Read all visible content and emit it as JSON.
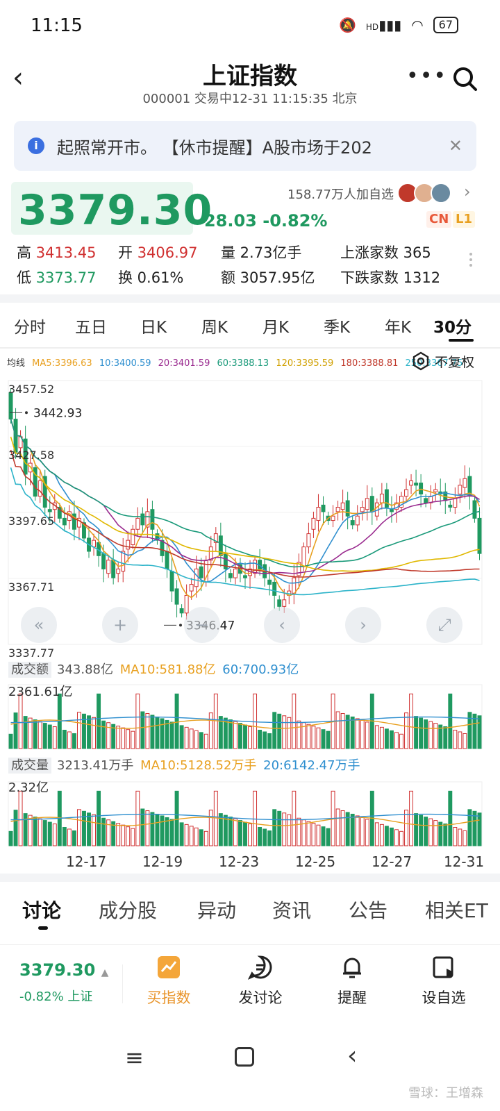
{
  "status": {
    "time": "11:15",
    "net": "HD",
    "battery": "67"
  },
  "header": {
    "title": "上证指数",
    "subtitle": "000001 交易中12-31 11:15:35 北京"
  },
  "notice": {
    "text": "起照常开市。 【休市提醒】A股市场于202"
  },
  "quote": {
    "price": "3379.30",
    "change": "-28.03 -0.82%",
    "followers": "158.77万人加自选",
    "badge_cn": "CN",
    "badge_l1": "L1"
  },
  "stats": {
    "high_label": "高",
    "high": "3413.45",
    "open_label": "开",
    "open": "3406.97",
    "volume": "量 2.73亿手",
    "advancers": "上涨家数 365",
    "low_label": "低",
    "low": "3373.77",
    "turnover": "换 0.61%",
    "amount": "额 3057.95亿",
    "decliners": "下跌家数 1312"
  },
  "period_tabs": [
    "分时",
    "五日",
    "日K",
    "周K",
    "月K",
    "季K",
    "年K",
    "30分"
  ],
  "active_period": "30分",
  "ma_legend": {
    "label": "均线",
    "items": [
      {
        "text": "MA5:3396.63",
        "color": "#e8a020"
      },
      {
        "text": "10:3400.59",
        "color": "#2f8fcf"
      },
      {
        "text": "20:3401.59",
        "color": "#9a2b8f"
      },
      {
        "text": "60:3388.13",
        "color": "#1a9a7a"
      },
      {
        "text": "120:3395.59",
        "color": "#e0b800"
      },
      {
        "text": "180:3388.81",
        "color": "#c0392b"
      },
      {
        "text": "250:3367.75",
        "color": "#2bb3c9"
      }
    ],
    "fq_label": "不复权"
  },
  "chart_data": {
    "type": "candlestick",
    "y_ticks": [
      "3457.52",
      "3427.58",
      "3397.65",
      "3367.71",
      "3337.77"
    ],
    "ylim": [
      3337.77,
      3457.52
    ],
    "max_marker": "3442.93",
    "min_marker": "3346.47",
    "x_ticks": [
      "12-17",
      "12-19",
      "12-23",
      "12-25",
      "12-27",
      "12-31"
    ],
    "ma_colors": {
      "ma5": "#e8a020",
      "ma10": "#2f8fcf",
      "ma20": "#9a2b8f",
      "ma60": "#1a9a7a",
      "ma120": "#e0b800",
      "ma180": "#c0392b",
      "ma250": "#2bb3c9"
    },
    "closes": [
      3440,
      3425,
      3432,
      3415,
      3420,
      3405,
      3412,
      3400,
      3398,
      3402,
      3395,
      3392,
      3398,
      3390,
      3395,
      3386,
      3380,
      3385,
      3378,
      3372,
      3376,
      3368,
      3372,
      3380,
      3385,
      3390,
      3395,
      3392,
      3398,
      3390,
      3385,
      3378,
      3372,
      3362,
      3356,
      3352,
      3360,
      3365,
      3372,
      3368,
      3376,
      3382,
      3388,
      3378,
      3372,
      3368,
      3372,
      3370,
      3368,
      3372,
      3376,
      3372,
      3368,
      3365,
      3360,
      3355,
      3358,
      3362,
      3368,
      3375,
      3382,
      3388,
      3395,
      3400,
      3398,
      3394,
      3396,
      3400,
      3402,
      3396,
      3392,
      3396,
      3400,
      3404,
      3398,
      3402,
      3406,
      3400,
      3398,
      3402,
      3405,
      3408,
      3412,
      3410,
      3406,
      3402,
      3405,
      3408,
      3406,
      3403,
      3400,
      3404,
      3410,
      3413,
      3405,
      3395,
      3379
    ],
    "nav_buttons": [
      "«",
      "+",
      "−",
      "‹",
      "›",
      "⤢"
    ]
  },
  "amount_panel": {
    "tag": "成交额",
    "value": "343.88亿",
    "ma10": "MA10:581.88亿",
    "ma60": "60:700.93亿",
    "max": "2361.61亿"
  },
  "volume_panel": {
    "tag": "成交量",
    "value": "3213.41万手",
    "ma10": "MA10:5128.52万手",
    "ma20": "20:6142.47万手",
    "max": "2.32亿"
  },
  "bottom_tabs": [
    "讨论",
    "成分股",
    "异动",
    "资讯",
    "公告",
    "相关ET"
  ],
  "action_bar": {
    "price": "3379.30",
    "change": "-0.82% 上证",
    "buttons": [
      "买指数",
      "发讨论",
      "提醒",
      "设自选"
    ]
  },
  "watermark": "雪球：王增森",
  "colors": {
    "up": "#d03030",
    "down": "#1f9960",
    "accent": "#e8942a"
  }
}
